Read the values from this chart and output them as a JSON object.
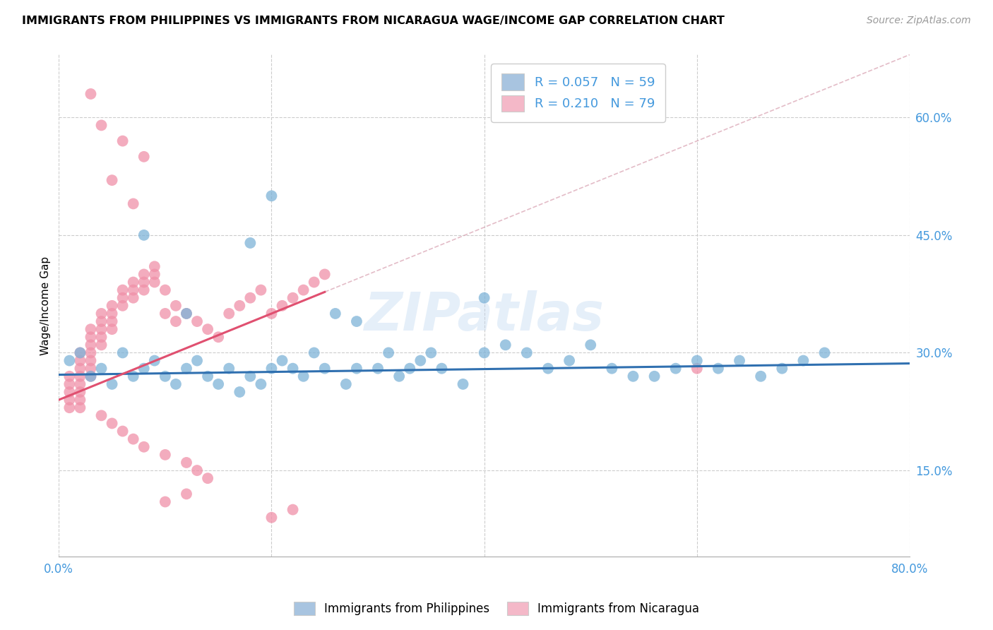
{
  "title": "IMMIGRANTS FROM PHILIPPINES VS IMMIGRANTS FROM NICARAGUA WAGE/INCOME GAP CORRELATION CHART",
  "source": "Source: ZipAtlas.com",
  "ylabel": "Wage/Income Gap",
  "yticks": [
    "15.0%",
    "30.0%",
    "45.0%",
    "60.0%"
  ],
  "ytick_vals": [
    0.15,
    0.3,
    0.45,
    0.6
  ],
  "xlim": [
    0.0,
    0.8
  ],
  "ylim": [
    0.04,
    0.68
  ],
  "legend1_label": "R = 0.057   N = 59",
  "legend2_label": "R = 0.210   N = 79",
  "legend1_color": "#a8c4e0",
  "legend2_color": "#f4b8c8",
  "scatter_color_blue": "#7eb3d8",
  "scatter_color_pink": "#f090a8",
  "trendline_blue": "#3070b0",
  "trendline_pink": "#e05070",
  "trendline_diag_color": "#d0b0b8",
  "watermark": "ZIPatlas",
  "philippines_x": [
    0.01,
    0.02,
    0.03,
    0.04,
    0.05,
    0.06,
    0.07,
    0.08,
    0.09,
    0.1,
    0.11,
    0.12,
    0.13,
    0.14,
    0.15,
    0.16,
    0.17,
    0.18,
    0.19,
    0.2,
    0.21,
    0.22,
    0.23,
    0.24,
    0.25,
    0.26,
    0.27,
    0.28,
    0.3,
    0.31,
    0.32,
    0.33,
    0.34,
    0.35,
    0.36,
    0.38,
    0.4,
    0.42,
    0.44,
    0.46,
    0.48,
    0.5,
    0.52,
    0.54,
    0.56,
    0.58,
    0.6,
    0.62,
    0.64,
    0.66,
    0.68,
    0.7,
    0.72,
    0.18,
    0.08,
    0.12,
    0.2,
    0.28,
    0.4
  ],
  "philippines_y": [
    0.29,
    0.3,
    0.27,
    0.28,
    0.26,
    0.3,
    0.27,
    0.28,
    0.29,
    0.27,
    0.26,
    0.28,
    0.29,
    0.27,
    0.26,
    0.28,
    0.25,
    0.27,
    0.26,
    0.28,
    0.29,
    0.28,
    0.27,
    0.3,
    0.28,
    0.35,
    0.26,
    0.28,
    0.28,
    0.3,
    0.27,
    0.28,
    0.29,
    0.3,
    0.28,
    0.26,
    0.3,
    0.31,
    0.3,
    0.28,
    0.29,
    0.31,
    0.28,
    0.27,
    0.27,
    0.28,
    0.29,
    0.28,
    0.29,
    0.27,
    0.28,
    0.29,
    0.3,
    0.44,
    0.45,
    0.35,
    0.5,
    0.34,
    0.37
  ],
  "nicaragua_x": [
    0.01,
    0.01,
    0.01,
    0.01,
    0.01,
    0.02,
    0.02,
    0.02,
    0.02,
    0.02,
    0.02,
    0.02,
    0.02,
    0.03,
    0.03,
    0.03,
    0.03,
    0.03,
    0.03,
    0.03,
    0.04,
    0.04,
    0.04,
    0.04,
    0.04,
    0.04,
    0.05,
    0.05,
    0.05,
    0.05,
    0.05,
    0.06,
    0.06,
    0.06,
    0.06,
    0.07,
    0.07,
    0.07,
    0.07,
    0.08,
    0.08,
    0.08,
    0.08,
    0.09,
    0.09,
    0.09,
    0.1,
    0.1,
    0.1,
    0.11,
    0.11,
    0.12,
    0.12,
    0.13,
    0.13,
    0.14,
    0.14,
    0.15,
    0.16,
    0.17,
    0.18,
    0.19,
    0.2,
    0.21,
    0.22,
    0.23,
    0.24,
    0.25,
    0.2,
    0.22,
    0.1,
    0.12,
    0.06,
    0.04,
    0.08,
    0.03,
    0.05,
    0.07,
    0.6
  ],
  "nicaragua_y": [
    0.27,
    0.26,
    0.25,
    0.24,
    0.23,
    0.3,
    0.29,
    0.28,
    0.27,
    0.26,
    0.25,
    0.24,
    0.23,
    0.33,
    0.32,
    0.31,
    0.3,
    0.29,
    0.28,
    0.27,
    0.35,
    0.34,
    0.33,
    0.32,
    0.31,
    0.22,
    0.36,
    0.35,
    0.34,
    0.33,
    0.21,
    0.38,
    0.37,
    0.36,
    0.2,
    0.39,
    0.38,
    0.37,
    0.19,
    0.4,
    0.39,
    0.38,
    0.18,
    0.41,
    0.4,
    0.39,
    0.38,
    0.35,
    0.17,
    0.36,
    0.34,
    0.35,
    0.16,
    0.34,
    0.15,
    0.33,
    0.14,
    0.32,
    0.35,
    0.36,
    0.37,
    0.38,
    0.35,
    0.36,
    0.37,
    0.38,
    0.39,
    0.4,
    0.09,
    0.1,
    0.11,
    0.12,
    0.57,
    0.59,
    0.55,
    0.63,
    0.52,
    0.49,
    0.28
  ],
  "trendline_blue_m": 0.018,
  "trendline_blue_b": 0.272,
  "trendline_pink_m": 0.55,
  "trendline_pink_b": 0.24
}
